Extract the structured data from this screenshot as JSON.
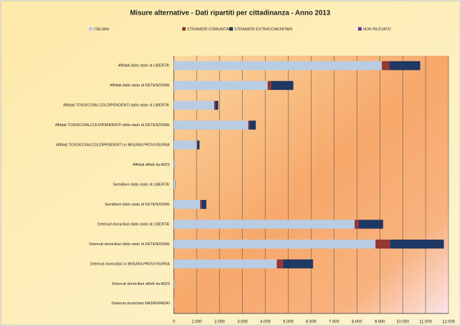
{
  "chart_data": {
    "type": "stacked-barh",
    "title": "Misure alternative - Dati ripartiti per cittadinanza - Anno 2013",
    "categories": [
      "Affidati dallo stato di LIBERTA'",
      "Affidati dallo stato di DETENZIONE",
      "Affidati TOSSICO/ALCOLDIPENDENTI dallo stato di LIBERTA'",
      "Affidati TOSSICO/ALCOLDIPENDENTI dallo stato di DETENZIONE",
      "Affidati TOSSICO/ALCOLDIPENDENTI in MISURA PROVVISORIA",
      "Affidati affetti da AIDS",
      "Semiliberi dallo stato di LIBERTA'",
      "Semiliberi dallo stato di DETENZIONE",
      "Detenuti domiciliari dallo stato di LIBERTA'",
      "Detenuti domiciliari dallo stato di DETENZIONE",
      "Detenuti domiciliari in MISURA PROVVISORIA",
      "Detenuti domiciliari affetti da AIDS",
      "Detenuti domiciliari MADRI/PADRI"
    ],
    "series": [
      {
        "name": "ITALIANI",
        "color": "#b8cce4",
        "values": [
          9090,
          4100,
          1760,
          3250,
          1000,
          50,
          70,
          1150,
          7900,
          8810,
          4500,
          40,
          20
        ]
      },
      {
        "name": "STRANIERI COMUNITARI",
        "color": "#953735",
        "values": [
          330,
          150,
          60,
          60,
          30,
          2,
          2,
          60,
          180,
          640,
          270,
          2,
          1
        ]
      },
      {
        "name": "STRANIERI EXTRACOMUNITARI",
        "color": "#1f3864",
        "values": [
          1340,
          970,
          120,
          270,
          90,
          5,
          8,
          210,
          1060,
          2340,
          1310,
          5,
          3
        ]
      },
      {
        "name": "NON RILEVATO",
        "color": "#7030a0",
        "values": [
          10,
          5,
          2,
          3,
          1,
          0,
          0,
          2,
          8,
          12,
          6,
          0,
          0
        ]
      }
    ],
    "xlim": [
      0,
      12000
    ],
    "xticks": [
      0,
      {
        "value": 1000,
        "label": "1.000"
      },
      {
        "value": 2000,
        "label": "2.000"
      },
      {
        "value": 3000,
        "label": "3.000"
      },
      {
        "value": 4000,
        "label": "4.000"
      },
      {
        "value": 5000,
        "label": "5.000"
      },
      {
        "value": 6000,
        "label": "6.000"
      },
      {
        "value": 7000,
        "label": "7.000"
      },
      {
        "value": 8000,
        "label": "8.000"
      },
      {
        "value": 9000,
        "label": "9.000"
      },
      {
        "value": 10000,
        "label": "10.000"
      },
      {
        "value": 11000,
        "label": "11.000"
      },
      {
        "value": 12000,
        "label": "12.000"
      }
    ],
    "grid": true,
    "legend": "top"
  }
}
